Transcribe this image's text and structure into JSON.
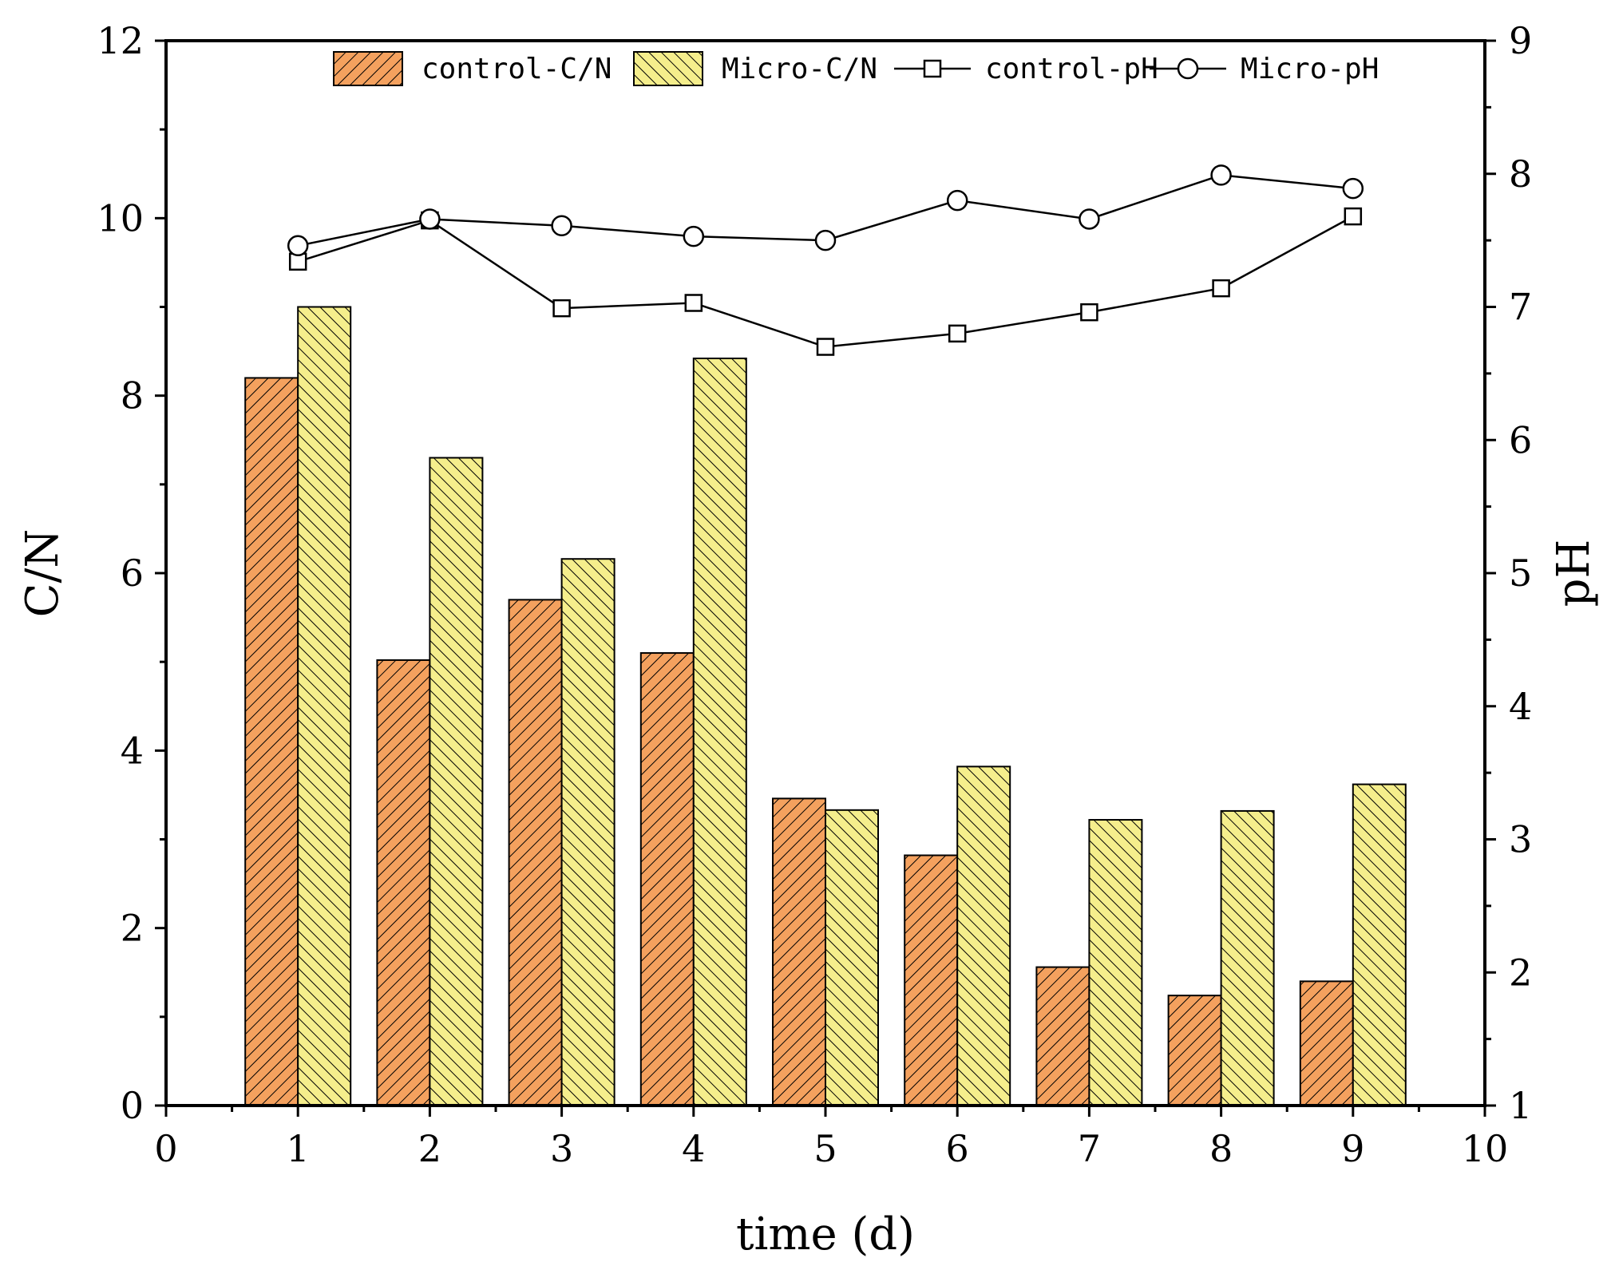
{
  "chart_data": {
    "type": "bar",
    "xlabel": "time (d)",
    "ylabel": "C/N",
    "y2label": "pH",
    "xlim": [
      0,
      10
    ],
    "ylim": [
      0,
      12
    ],
    "y2lim": [
      1,
      9
    ],
    "xticks": [
      "0",
      "1",
      "2",
      "3",
      "4",
      "5",
      "6",
      "7",
      "8",
      "9",
      "10"
    ],
    "yticks": [
      "0",
      "2",
      "4",
      "6",
      "8",
      "10",
      "12"
    ],
    "y2ticks": [
      "1",
      "2",
      "3",
      "4",
      "5",
      "6",
      "7",
      "8",
      "9"
    ],
    "x": [
      1,
      2,
      3,
      4,
      5,
      6,
      7,
      8,
      9
    ],
    "bar_series": [
      {
        "name": "control-C/N",
        "color": "#F4A15E",
        "hatch": "forward",
        "values": [
          8.2,
          5.02,
          5.7,
          5.1,
          3.46,
          2.82,
          1.56,
          1.24,
          1.4
        ]
      },
      {
        "name": "Micro-C/N",
        "color": "#F5EE8C",
        "hatch": "backward",
        "values": [
          9.0,
          7.3,
          6.16,
          8.42,
          3.33,
          3.82,
          3.22,
          3.32,
          3.62
        ]
      }
    ],
    "line_series": [
      {
        "name": "control-pH",
        "axis": "right",
        "marker": "square",
        "values": [
          7.34,
          7.65,
          6.99,
          7.03,
          6.7,
          6.8,
          6.96,
          7.14,
          7.68
        ]
      },
      {
        "name": "Micro-pH",
        "axis": "right",
        "marker": "circle",
        "values": [
          7.46,
          7.66,
          7.61,
          7.53,
          7.5,
          7.8,
          7.66,
          7.99,
          7.89
        ]
      }
    ],
    "legend_position": "top",
    "grid": false
  }
}
